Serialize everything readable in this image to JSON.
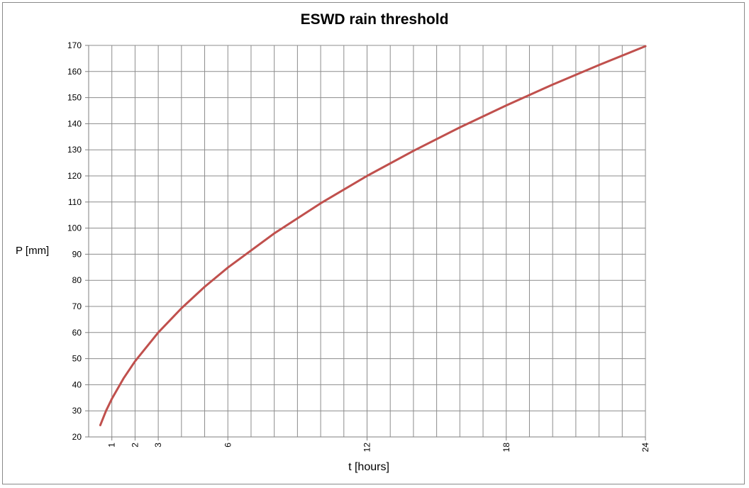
{
  "chart_data": {
    "type": "line",
    "title": "ESWD rain threshold",
    "xlabel": "t [hours]",
    "ylabel": "P [mm]",
    "xlim": [
      0,
      24
    ],
    "ylim": [
      20,
      170
    ],
    "grid": true,
    "x_major_ticks": [
      1,
      2,
      3,
      6,
      12,
      18,
      24
    ],
    "x_minor_grid_step": 1,
    "y_ticks": [
      20,
      30,
      40,
      50,
      60,
      70,
      80,
      90,
      100,
      110,
      120,
      130,
      140,
      150,
      160,
      170
    ],
    "series": [
      {
        "color": "#c0504d",
        "x": [
          0.5,
          0.75,
          1,
          1.5,
          2,
          3,
          4,
          5,
          6,
          8,
          10,
          12,
          14,
          16,
          18,
          20,
          22,
          24
        ],
        "y": [
          24.5,
          30,
          34.6,
          42.4,
          49,
          60,
          69.3,
          77.5,
          84.9,
          98,
          109.5,
          120,
          129.6,
          138.6,
          147,
          155,
          162.5,
          169.7
        ]
      }
    ]
  }
}
